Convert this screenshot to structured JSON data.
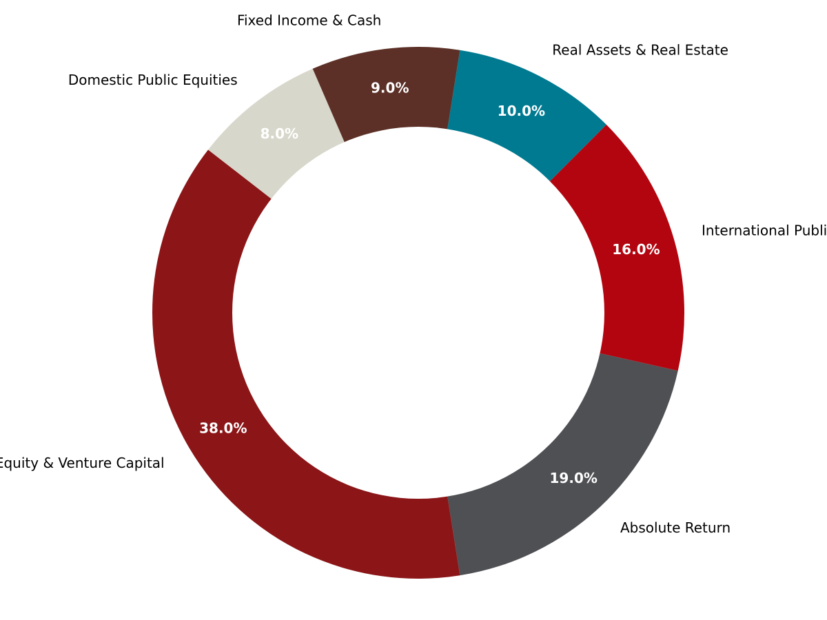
{
  "chart_data": {
    "type": "pie",
    "donut": true,
    "title": "",
    "start_angle_deg": 81,
    "direction": "clockwise",
    "legend": "none",
    "slices": [
      {
        "label": "Real Assets & Real Estate",
        "value": 10.0,
        "pct_label": "10.0%",
        "color": "#007A91",
        "pct_color": "#ffffff"
      },
      {
        "label": "International Public Equities",
        "value": 16.0,
        "pct_label": "16.0%",
        "color": "#B3050F",
        "pct_color": "#ffffff"
      },
      {
        "label": "Absolute Return",
        "value": 19.0,
        "pct_label": "19.0%",
        "color": "#4F5054",
        "pct_color": "#ffffff"
      },
      {
        "label": "Private Equity & Venture Capital",
        "value": 38.0,
        "pct_label": "38.0%",
        "color": "#8B1517",
        "pct_color": "#ffffff"
      },
      {
        "label": "Domestic Public Equities",
        "value": 8.0,
        "pct_label": "8.0%",
        "color": "#D8D7CB",
        "pct_color": "#ffffff"
      },
      {
        "label": "Fixed Income & Cash",
        "value": 9.0,
        "pct_label": "9.0%",
        "color": "#5C3027",
        "pct_color": "#ffffff"
      }
    ]
  }
}
